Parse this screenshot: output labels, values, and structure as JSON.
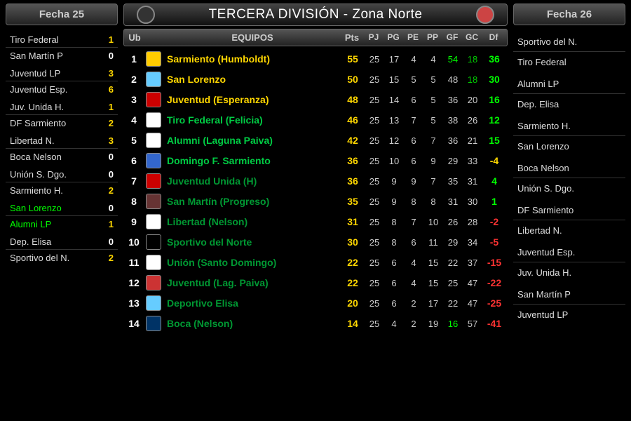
{
  "title": "TERCERA DIVISIÓN - Zona Norte",
  "left_header": "Fecha 25",
  "right_header": "Fecha 26",
  "headers": {
    "ub": "Ub",
    "team": "EQUIPOS",
    "pts": "Pts",
    "pj": "PJ",
    "pg": "PG",
    "pe": "PE",
    "pp": "PP",
    "gf": "GF",
    "gc": "GC",
    "df": "Df"
  },
  "left_fixtures": [
    {
      "rows": [
        {
          "team": "Tiro Federal",
          "score": "1",
          "tc": "",
          "sc": "sc-yellow"
        },
        {
          "team": "San Martín P",
          "score": "0",
          "tc": "",
          "sc": "sc-white"
        }
      ]
    },
    {
      "rows": [
        {
          "team": "Juventud LP",
          "score": "3",
          "tc": "",
          "sc": "sc-yellow"
        },
        {
          "team": "Juventud Esp.",
          "score": "6",
          "tc": "",
          "sc": "sc-yellow"
        }
      ]
    },
    {
      "rows": [
        {
          "team": "Juv. Unida H.",
          "score": "1",
          "tc": "",
          "sc": "sc-yellow"
        },
        {
          "team": "DF Sarmiento",
          "score": "2",
          "tc": "",
          "sc": "sc-yellow"
        }
      ]
    },
    {
      "rows": [
        {
          "team": "Libertad N.",
          "score": "3",
          "tc": "",
          "sc": "sc-yellow"
        },
        {
          "team": "Boca Nelson",
          "score": "0",
          "tc": "",
          "sc": "sc-white"
        }
      ]
    },
    {
      "rows": [
        {
          "team": "Unión S. Dgo.",
          "score": "0",
          "tc": "",
          "sc": "sc-white"
        },
        {
          "team": "Sarmiento H.",
          "score": "2",
          "tc": "",
          "sc": "sc-yellow"
        }
      ]
    },
    {
      "rows": [
        {
          "team": "San Lorenzo",
          "score": "0",
          "tc": "win",
          "sc": "sc-white"
        },
        {
          "team": "Alumni LP",
          "score": "1",
          "tc": "win",
          "sc": "sc-yellow"
        }
      ]
    },
    {
      "rows": [
        {
          "team": "Dep. Elisa",
          "score": "0",
          "tc": "",
          "sc": "sc-white"
        },
        {
          "team": "Sportivo del N.",
          "score": "2",
          "tc": "",
          "sc": "sc-yellow"
        }
      ]
    }
  ],
  "right_fixtures": [
    {
      "rows": [
        {
          "team": "Sportivo del N."
        },
        {
          "team": "Tiro Federal"
        }
      ]
    },
    {
      "rows": [
        {
          "team": "Alumni LP"
        },
        {
          "team": "Dep. Elisa"
        }
      ]
    },
    {
      "rows": [
        {
          "team": "Sarmiento H."
        },
        {
          "team": "San Lorenzo"
        }
      ]
    },
    {
      "rows": [
        {
          "team": "Boca Nelson"
        },
        {
          "team": "Unión S. Dgo."
        }
      ]
    },
    {
      "rows": [
        {
          "team": "DF Sarmiento"
        },
        {
          "team": "Libertad N."
        }
      ]
    },
    {
      "rows": [
        {
          "team": "Juventud Esp."
        },
        {
          "team": "Juv. Unida H."
        }
      ]
    },
    {
      "rows": [
        {
          "team": "San Martín P"
        },
        {
          "team": "Juventud LP"
        }
      ]
    }
  ],
  "standings": [
    {
      "ub": "1",
      "team": "Sarmiento (Humboldt)",
      "tc": "team-yellow",
      "pts": "55",
      "pj": "25",
      "pg": "17",
      "pe": "4",
      "pp": "4",
      "gf": "54",
      "gfc": "gf-green",
      "gc": "18",
      "gcc": "gc-green",
      "df": "36",
      "dfc": "df-green",
      "badge": "#ffcc00"
    },
    {
      "ub": "2",
      "team": "San Lorenzo",
      "tc": "team-yellow",
      "pts": "50",
      "pj": "25",
      "pg": "15",
      "pe": "5",
      "pp": "5",
      "gf": "48",
      "gfc": "",
      "gc": "18",
      "gcc": "gc-green",
      "df": "30",
      "dfc": "df-green",
      "badge": "#66ccff"
    },
    {
      "ub": "3",
      "team": "Juventud (Esperanza)",
      "tc": "team-yellow",
      "pts": "48",
      "pj": "25",
      "pg": "14",
      "pe": "6",
      "pp": "5",
      "gf": "36",
      "gfc": "",
      "gc": "20",
      "gcc": "",
      "df": "16",
      "dfc": "df-green",
      "badge": "#cc0000"
    },
    {
      "ub": "4",
      "team": "Tiro Federal (Felicia)",
      "tc": "team-green",
      "pts": "46",
      "pj": "25",
      "pg": "13",
      "pe": "7",
      "pp": "5",
      "gf": "38",
      "gfc": "",
      "gc": "26",
      "gcc": "",
      "df": "12",
      "dfc": "df-green",
      "badge": "#ffffff"
    },
    {
      "ub": "5",
      "team": "Alumni (Laguna Paiva)",
      "tc": "team-green",
      "pts": "42",
      "pj": "25",
      "pg": "12",
      "pe": "6",
      "pp": "7",
      "gf": "36",
      "gfc": "",
      "gc": "21",
      "gcc": "",
      "df": "15",
      "dfc": "df-green",
      "badge": "#ffffff"
    },
    {
      "ub": "6",
      "team": "Domingo F. Sarmiento",
      "tc": "team-green",
      "pts": "36",
      "pj": "25",
      "pg": "10",
      "pe": "6",
      "pp": "9",
      "gf": "29",
      "gfc": "",
      "gc": "33",
      "gcc": "",
      "df": "-4",
      "dfc": "df-yellow",
      "badge": "#3366cc"
    },
    {
      "ub": "7",
      "team": "Juventud Unida (H)",
      "tc": "team-dgreen",
      "pts": "36",
      "pj": "25",
      "pg": "9",
      "pe": "9",
      "pp": "7",
      "gf": "35",
      "gfc": "",
      "gc": "31",
      "gcc": "",
      "df": "4",
      "dfc": "df-green",
      "badge": "#cc0000"
    },
    {
      "ub": "8",
      "team": "San Martín (Progreso)",
      "tc": "team-dgreen",
      "pts": "35",
      "pj": "25",
      "pg": "9",
      "pe": "8",
      "pp": "8",
      "gf": "31",
      "gfc": "",
      "gc": "30",
      "gcc": "",
      "df": "1",
      "dfc": "df-green",
      "badge": "#663333"
    },
    {
      "ub": "9",
      "team": "Libertad (Nelson)",
      "tc": "team-dgreen",
      "pts": "31",
      "pj": "25",
      "pg": "8",
      "pe": "7",
      "pp": "10",
      "gf": "26",
      "gfc": "",
      "gc": "28",
      "gcc": "",
      "df": "-2",
      "dfc": "df-red",
      "badge": "#ffffff"
    },
    {
      "ub": "10",
      "team": "Sportivo del Norte",
      "tc": "team-dgreen",
      "pts": "30",
      "pj": "25",
      "pg": "8",
      "pe": "6",
      "pp": "11",
      "gf": "29",
      "gfc": "",
      "gc": "34",
      "gcc": "",
      "df": "-5",
      "dfc": "df-red",
      "badge": "#000000"
    },
    {
      "ub": "11",
      "team": "Unión (Santo Domingo)",
      "tc": "team-dgreen",
      "pts": "22",
      "pj": "25",
      "pg": "6",
      "pe": "4",
      "pp": "15",
      "gf": "22",
      "gfc": "",
      "gc": "37",
      "gcc": "",
      "df": "-15",
      "dfc": "df-red",
      "badge": "#ffffff"
    },
    {
      "ub": "12",
      "team": "Juventud (Lag. Paiva)",
      "tc": "team-dgreen",
      "pts": "22",
      "pj": "25",
      "pg": "6",
      "pe": "4",
      "pp": "15",
      "gf": "25",
      "gfc": "",
      "gc": "47",
      "gcc": "",
      "df": "-22",
      "dfc": "df-red",
      "badge": "#cc3333"
    },
    {
      "ub": "13",
      "team": "Deportivo Elisa",
      "tc": "team-dgreen",
      "pts": "20",
      "pj": "25",
      "pg": "6",
      "pe": "2",
      "pp": "17",
      "gf": "22",
      "gfc": "",
      "gc": "47",
      "gcc": "",
      "df": "-25",
      "dfc": "df-red",
      "badge": "#66ccff"
    },
    {
      "ub": "14",
      "team": "Boca (Nelson)",
      "tc": "team-dgreen",
      "pts": "14",
      "pj": "25",
      "pg": "4",
      "pe": "2",
      "pp": "19",
      "gf": "16",
      "gfc": "gf-green",
      "gc": "57",
      "gcc": "",
      "df": "-41",
      "dfc": "df-red",
      "badge": "#003366"
    }
  ]
}
